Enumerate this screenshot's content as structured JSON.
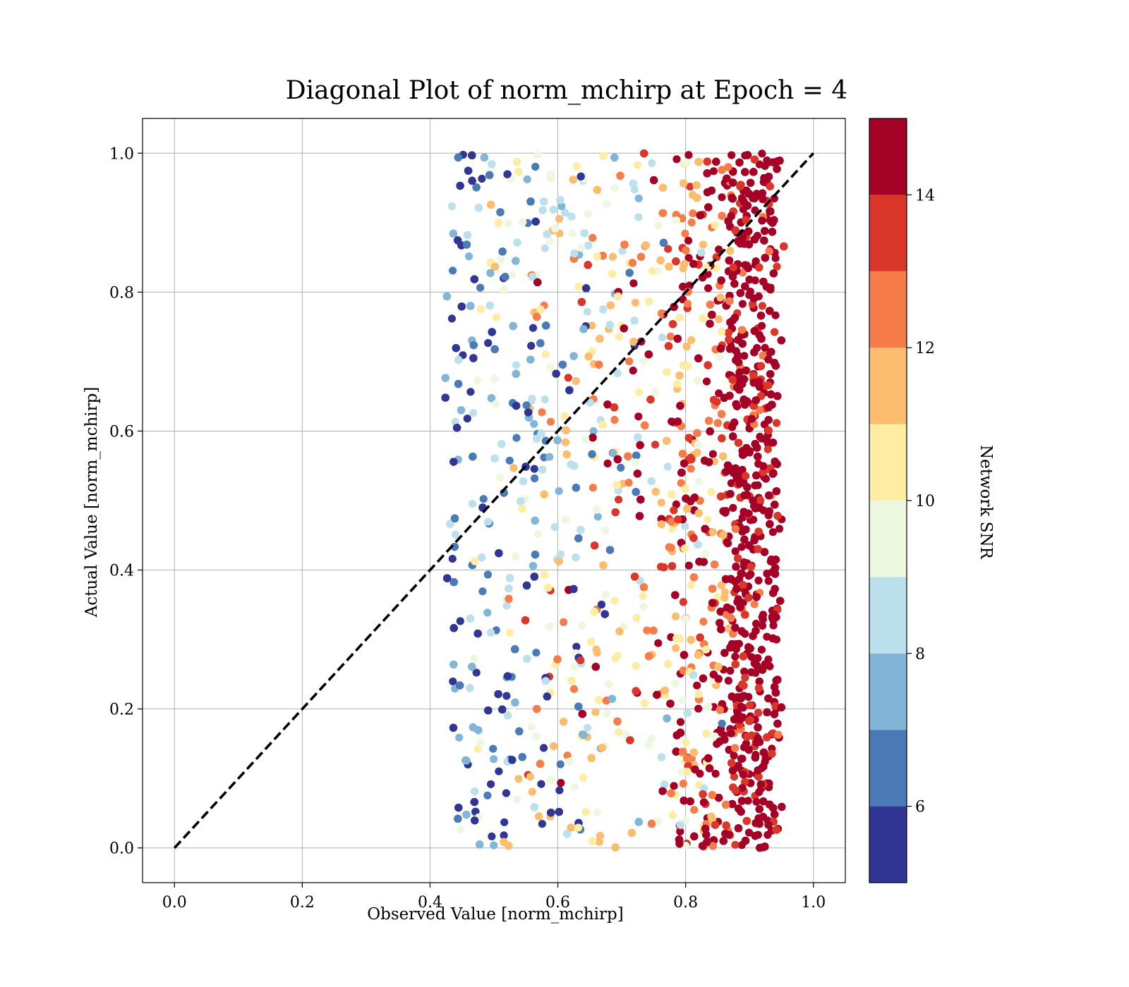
{
  "chart_data": {
    "type": "scatter",
    "title": "Diagonal Plot of norm_mchirp at Epoch = 4",
    "xlabel": "Observed Value [norm_mchirp]",
    "ylabel": "Actual Value [norm_mchirp]",
    "xlim": [
      -0.05,
      1.05
    ],
    "ylim": [
      -0.05,
      1.05
    ],
    "xticks": [
      "0.0",
      "0.2",
      "0.4",
      "0.6",
      "0.8",
      "1.0"
    ],
    "yticks": [
      "0.0",
      "0.2",
      "0.4",
      "0.6",
      "0.8",
      "1.0"
    ],
    "grid": true,
    "diagonal_line": {
      "x": [
        0.0,
        1.0
      ],
      "y": [
        0.0,
        1.0
      ],
      "style": "dashed",
      "color": "#000000"
    },
    "scatter_extent": {
      "x": [
        0.41,
        0.96
      ],
      "y": [
        0.0,
        1.0
      ]
    },
    "colorbar": {
      "label": "Network SNR",
      "range": [
        5,
        15
      ],
      "ticks": [
        "6",
        "8",
        "10",
        "12",
        "14"
      ],
      "colormap": "RdYlBu_r",
      "levels": [
        "#313695",
        "#4575b4",
        "#74add1",
        "#abd9e9",
        "#e0f3f8",
        "#ffffbf",
        "#fee090",
        "#fdae61",
        "#f46d43",
        "#a50026"
      ],
      "bins": [
        {
          "range": [
            5,
            6
          ],
          "color": "#313695"
        },
        {
          "range": [
            6,
            7
          ],
          "color": "#4a7bb7"
        },
        {
          "range": [
            7,
            8
          ],
          "color": "#82b6d8"
        },
        {
          "range": [
            8,
            9
          ],
          "color": "#bde1ec"
        },
        {
          "range": [
            9,
            10
          ],
          "color": "#eef8e0"
        },
        {
          "range": [
            10,
            11
          ],
          "color": "#feeda2"
        },
        {
          "range": [
            11,
            12
          ],
          "color": "#fdbd6f"
        },
        {
          "range": [
            12,
            13
          ],
          "color": "#f67d4a"
        },
        {
          "range": [
            13,
            14
          ],
          "color": "#da372a"
        },
        {
          "range": [
            14,
            15
          ],
          "color": "#a50026"
        }
      ]
    },
    "density_trend": "SNR increases with observed value; points near observed 0.87-0.95 are mostly SNR above 14, points near 0.43-0.5 are mostly SNR 5-9"
  }
}
